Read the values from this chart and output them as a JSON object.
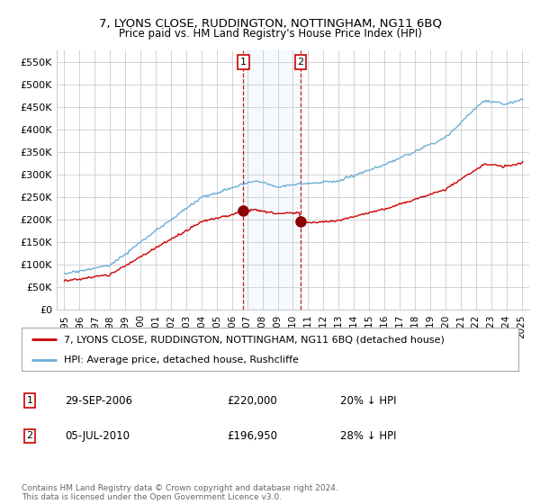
{
  "title": "7, LYONS CLOSE, RUDDINGTON, NOTTINGHAM, NG11 6BQ",
  "subtitle": "Price paid vs. HM Land Registry's House Price Index (HPI)",
  "legend_line1": "7, LYONS CLOSE, RUDDINGTON, NOTTINGHAM, NG11 6BQ (detached house)",
  "legend_line2": "HPI: Average price, detached house, Rushcliffe",
  "footer": "Contains HM Land Registry data © Crown copyright and database right 2024.\nThis data is licensed under the Open Government Licence v3.0.",
  "sale1_date": "29-SEP-2006",
  "sale1_price": "£220,000",
  "sale1_hpi": "20% ↓ HPI",
  "sale1_x": 2006.75,
  "sale1_y": 220000,
  "sale2_date": "05-JUL-2010",
  "sale2_price": "£196,950",
  "sale2_hpi": "28% ↓ HPI",
  "sale2_x": 2010.5,
  "sale2_y": 196950,
  "hpi_color": "#6baed6",
  "price_color": "#cc0000",
  "marker_color": "#8b0000",
  "vline_color": "#cc0000",
  "background_color": "#ffffff",
  "grid_color": "#cccccc",
  "ylim": [
    0,
    575000
  ],
  "xlim": [
    1994.5,
    2025.5
  ],
  "yticks": [
    0,
    50000,
    100000,
    150000,
    200000,
    250000,
    300000,
    350000,
    400000,
    450000,
    500000,
    550000
  ],
  "ytick_labels": [
    "£0",
    "£50K",
    "£100K",
    "£150K",
    "£200K",
    "£250K",
    "£300K",
    "£350K",
    "£400K",
    "£450K",
    "£500K",
    "£550K"
  ],
  "xtick_years": [
    1995,
    1996,
    1997,
    1998,
    1999,
    2000,
    2001,
    2002,
    2003,
    2004,
    2005,
    2006,
    2007,
    2008,
    2009,
    2010,
    2011,
    2012,
    2013,
    2014,
    2015,
    2016,
    2017,
    2018,
    2019,
    2020,
    2021,
    2022,
    2023,
    2024,
    2025
  ]
}
